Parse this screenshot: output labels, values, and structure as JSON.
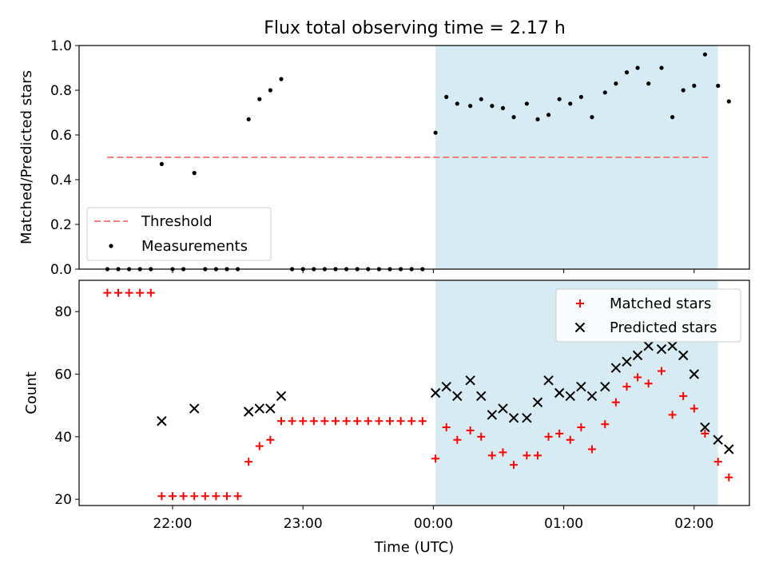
{
  "title": "Flux total observing time = 2.17 h",
  "colors": {
    "threshold": "#f08080",
    "measurement": "#000000",
    "matched": "#ff0000",
    "predicted": "#000000",
    "shade": "#add8e6"
  },
  "chart_data": [
    {
      "type": "scatter",
      "ylabel": "Matched/Predicted stars",
      "ylim": [
        0,
        1
      ],
      "yticks": [
        "0.0",
        "0.2",
        "0.4",
        "0.6",
        "0.8",
        "1.0"
      ],
      "grid": false,
      "legend_position": "lower-left",
      "legend": {
        "threshold": "Threshold",
        "measurements": "Measurements"
      },
      "shaded_region": {
        "start": "00:01",
        "end": "02:11"
      },
      "threshold": {
        "name": "Threshold",
        "value": 0.5,
        "start": "21:30",
        "end": "02:08"
      },
      "series": [
        {
          "name": "Measurements",
          "marker": "dot",
          "points": [
            [
              "21:30",
              0
            ],
            [
              "21:35",
              0
            ],
            [
              "21:40",
              0
            ],
            [
              "21:45",
              0
            ],
            [
              "21:50",
              0
            ],
            [
              "21:55",
              0.47
            ],
            [
              "22:00",
              0
            ],
            [
              "22:05",
              0
            ],
            [
              "22:10",
              0.43
            ],
            [
              "22:15",
              0
            ],
            [
              "22:20",
              0
            ],
            [
              "22:25",
              0
            ],
            [
              "22:30",
              0
            ],
            [
              "22:35",
              0.67
            ],
            [
              "22:40",
              0.76
            ],
            [
              "22:45",
              0.8
            ],
            [
              "22:50",
              0.85
            ],
            [
              "22:55",
              0
            ],
            [
              "23:00",
              0
            ],
            [
              "23:05",
              0
            ],
            [
              "23:10",
              0
            ],
            [
              "23:15",
              0
            ],
            [
              "23:20",
              0
            ],
            [
              "23:25",
              0
            ],
            [
              "23:30",
              0
            ],
            [
              "23:35",
              0
            ],
            [
              "23:40",
              0
            ],
            [
              "23:45",
              0
            ],
            [
              "23:50",
              0
            ],
            [
              "23:55",
              0
            ],
            [
              "00:01",
              0.61
            ],
            [
              "00:06",
              0.77
            ],
            [
              "00:11",
              0.74
            ],
            [
              "00:17",
              0.73
            ],
            [
              "00:22",
              0.76
            ],
            [
              "00:27",
              0.73
            ],
            [
              "00:32",
              0.72
            ],
            [
              "00:37",
              0.68
            ],
            [
              "00:43",
              0.74
            ],
            [
              "00:48",
              0.67
            ],
            [
              "00:53",
              0.69
            ],
            [
              "00:58",
              0.76
            ],
            [
              "01:03",
              0.74
            ],
            [
              "01:08",
              0.77
            ],
            [
              "01:13",
              0.68
            ],
            [
              "01:19",
              0.79
            ],
            [
              "01:24",
              0.83
            ],
            [
              "01:29",
              0.88
            ],
            [
              "01:34",
              0.9
            ],
            [
              "01:39",
              0.83
            ],
            [
              "01:45",
              0.9
            ],
            [
              "01:50",
              0.68
            ],
            [
              "01:55",
              0.8
            ],
            [
              "02:00",
              0.82
            ],
            [
              "02:05",
              0.96
            ],
            [
              "02:11",
              0.82
            ],
            [
              "02:16",
              0.75
            ]
          ]
        }
      ]
    },
    {
      "type": "scatter",
      "xlabel": "Time (UTC)",
      "ylabel": "Count",
      "ylim": [
        18,
        90
      ],
      "yticks": [
        "20",
        "40",
        "60",
        "80"
      ],
      "xticks": [
        "22:00",
        "23:00",
        "00:00",
        "01:00",
        "02:00"
      ],
      "grid": false,
      "legend_position": "top-right",
      "legend": {
        "matched": "Matched stars",
        "predicted": "Predicted stars"
      },
      "shaded_region": {
        "start": "00:01",
        "end": "02:11"
      },
      "series": [
        {
          "name": "Matched stars",
          "marker": "plus",
          "points": [
            [
              "21:30",
              86
            ],
            [
              "21:35",
              86
            ],
            [
              "21:40",
              86
            ],
            [
              "21:45",
              86
            ],
            [
              "21:50",
              86
            ],
            [
              "21:55",
              21
            ],
            [
              "22:00",
              21
            ],
            [
              "22:05",
              21
            ],
            [
              "22:10",
              21
            ],
            [
              "22:15",
              21
            ],
            [
              "22:20",
              21
            ],
            [
              "22:25",
              21
            ],
            [
              "22:30",
              21
            ],
            [
              "22:35",
              32
            ],
            [
              "22:40",
              37
            ],
            [
              "22:45",
              39
            ],
            [
              "22:50",
              45
            ],
            [
              "22:55",
              45
            ],
            [
              "23:00",
              45
            ],
            [
              "23:05",
              45
            ],
            [
              "23:10",
              45
            ],
            [
              "23:15",
              45
            ],
            [
              "23:20",
              45
            ],
            [
              "23:25",
              45
            ],
            [
              "23:30",
              45
            ],
            [
              "23:35",
              45
            ],
            [
              "23:40",
              45
            ],
            [
              "23:45",
              45
            ],
            [
              "23:50",
              45
            ],
            [
              "23:55",
              45
            ],
            [
              "00:01",
              33
            ],
            [
              "00:06",
              43
            ],
            [
              "00:11",
              39
            ],
            [
              "00:17",
              42
            ],
            [
              "00:22",
              40
            ],
            [
              "00:27",
              34
            ],
            [
              "00:32",
              35
            ],
            [
              "00:37",
              31
            ],
            [
              "00:43",
              34
            ],
            [
              "00:48",
              34
            ],
            [
              "00:53",
              40
            ],
            [
              "00:58",
              41
            ],
            [
              "01:03",
              39
            ],
            [
              "01:08",
              43
            ],
            [
              "01:13",
              36
            ],
            [
              "01:19",
              44
            ],
            [
              "01:24",
              51
            ],
            [
              "01:29",
              56
            ],
            [
              "01:34",
              59
            ],
            [
              "01:39",
              57
            ],
            [
              "01:45",
              61
            ],
            [
              "01:50",
              47
            ],
            [
              "01:55",
              53
            ],
            [
              "02:00",
              49
            ],
            [
              "02:05",
              41
            ],
            [
              "02:11",
              32
            ],
            [
              "02:16",
              27
            ]
          ]
        },
        {
          "name": "Predicted stars",
          "marker": "x",
          "points": [
            [
              "21:55",
              45
            ],
            [
              "22:10",
              49
            ],
            [
              "22:35",
              48
            ],
            [
              "22:40",
              49
            ],
            [
              "22:45",
              49
            ],
            [
              "22:50",
              53
            ],
            [
              "00:01",
              54
            ],
            [
              "00:06",
              56
            ],
            [
              "00:11",
              53
            ],
            [
              "00:17",
              58
            ],
            [
              "00:22",
              53
            ],
            [
              "00:27",
              47
            ],
            [
              "00:32",
              49
            ],
            [
              "00:37",
              46
            ],
            [
              "00:43",
              46
            ],
            [
              "00:48",
              51
            ],
            [
              "00:53",
              58
            ],
            [
              "00:58",
              54
            ],
            [
              "01:03",
              53
            ],
            [
              "01:08",
              56
            ],
            [
              "01:13",
              53
            ],
            [
              "01:19",
              56
            ],
            [
              "01:24",
              62
            ],
            [
              "01:29",
              64
            ],
            [
              "01:34",
              66
            ],
            [
              "01:39",
              69
            ],
            [
              "01:45",
              68
            ],
            [
              "01:50",
              69
            ],
            [
              "01:55",
              66
            ],
            [
              "02:00",
              60
            ],
            [
              "02:05",
              43
            ],
            [
              "02:11",
              39
            ],
            [
              "02:16",
              36
            ]
          ]
        }
      ]
    }
  ]
}
